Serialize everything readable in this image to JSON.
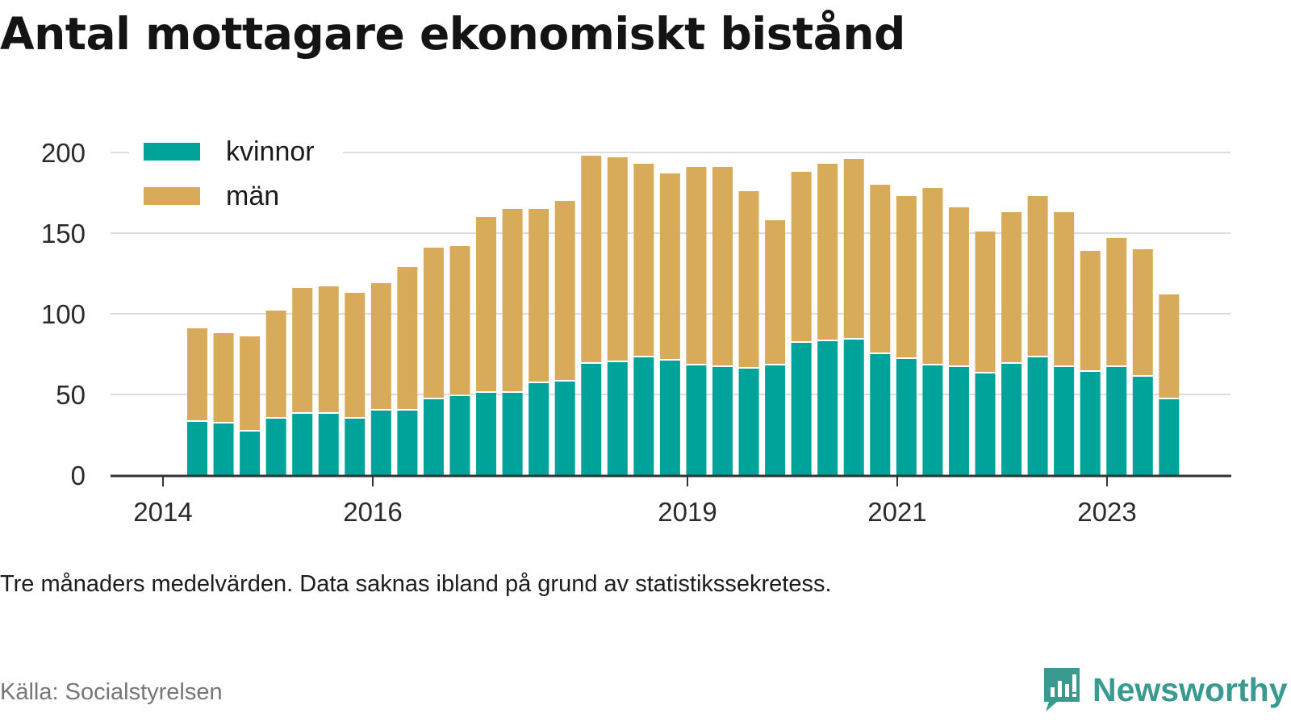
{
  "title": "Antal mottagare ekonomiskt bistånd",
  "note": "Tre månaders medelvärden. Data saknas ibland på grund av statistikssekretess.",
  "source": "Källa: Socialstyrelsen",
  "brand": "Newsworthy",
  "colors": {
    "kvinnor": "#00a39a",
    "man": "#d8ab5a",
    "grid": "#dcdcdc",
    "axis": "#333333",
    "brand": "#3a9a8f"
  },
  "chart_data": {
    "type": "bar",
    "stacked": true,
    "grid": true,
    "legend_position": "top-left",
    "ylim": [
      0,
      200
    ],
    "y_ticks": [
      0,
      50,
      100,
      150,
      200
    ],
    "x_tick_labels": [
      "2014",
      "2016",
      "2019",
      "2021",
      "2023"
    ],
    "series": [
      {
        "name": "kvinnor",
        "values": [
          33,
          32,
          27,
          35,
          38,
          38,
          35,
          40,
          40,
          47,
          49,
          51,
          51,
          57,
          58,
          69,
          70,
          73,
          71,
          68,
          67,
          66,
          68,
          82,
          83,
          84,
          75,
          72,
          68,
          67,
          63,
          69,
          73,
          67,
          64,
          67,
          61,
          47
        ]
      },
      {
        "name": "män",
        "values": [
          58,
          56,
          59,
          67,
          78,
          79,
          78,
          79,
          89,
          94,
          93,
          109,
          114,
          108,
          112,
          129,
          127,
          120,
          116,
          123,
          124,
          110,
          90,
          106,
          110,
          112,
          105,
          101,
          110,
          99,
          88,
          94,
          100,
          96,
          75,
          80,
          79,
          65
        ]
      }
    ]
  }
}
